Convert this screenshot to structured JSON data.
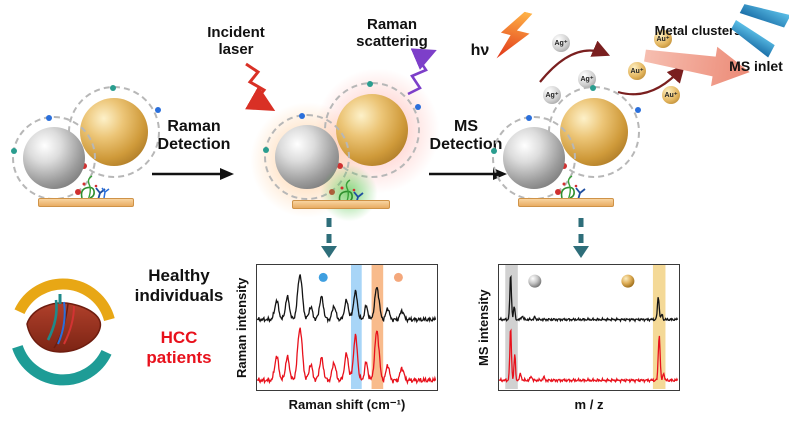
{
  "labels": {
    "incident_laser": [
      "Incident",
      "laser"
    ],
    "raman_scattering": [
      "Raman",
      "scattering"
    ],
    "raman_detection": [
      "Raman",
      "Detection"
    ],
    "ms_detection": [
      "MS",
      "Detection"
    ],
    "hv": "hν",
    "metal_clusters": "Metal clusters",
    "ms_inlet": "MS inlet",
    "ag_ion": "Ag⁺",
    "au_ion": "Au⁺",
    "healthy": [
      "Healthy",
      "individuals"
    ],
    "hcc": [
      "HCC",
      "patients"
    ]
  },
  "colors": {
    "hcc_red": "#e8111c",
    "healthy_black": "#111111",
    "logo_yellow": "#e8a715",
    "logo_teal": "#1e9c96",
    "laser_red": "#d93025",
    "scatter_purple": "#7d3fc9"
  },
  "chart_data": [
    {
      "type": "line",
      "name": "raman-spectra",
      "xlabel": "Raman shift (cm⁻¹)",
      "ylabel": "Raman intensity",
      "x_range": [
        0,
        100
      ],
      "grid": false,
      "bands": [
        {
          "x0": 52.5,
          "x1": 58.5,
          "color": "rgba(96,178,240,0.55)"
        },
        {
          "x0": 64.0,
          "x1": 70.5,
          "color": "rgba(243,146,70,0.62)"
        }
      ],
      "markers": [
        {
          "x": 37,
          "y": 10,
          "r": 4.5,
          "fill": "#3f9fe0"
        },
        {
          "x": 79,
          "y": 10,
          "r": 4.5,
          "fill": "#f4a87c"
        }
      ],
      "series": [
        {
          "name": "Healthy individuals",
          "color": "#141414",
          "baseline": 44,
          "amp": 36,
          "noise": 0.02,
          "peaks": [
            [
              11,
              0.42,
              1.1
            ],
            [
              17,
              0.5,
              1.1
            ],
            [
              24,
              1.0,
              1.3
            ],
            [
              30,
              0.28,
              1.0
            ],
            [
              36,
              0.5,
              1.1
            ],
            [
              43,
              0.3,
              1.0
            ],
            [
              50,
              0.42,
              1.1
            ],
            [
              55,
              0.62,
              1.1
            ],
            [
              61,
              0.3,
              0.9
            ],
            [
              67,
              0.72,
              1.2
            ],
            [
              73,
              0.26,
              0.9
            ],
            [
              81,
              0.2,
              1.0
            ]
          ]
        },
        {
          "name": "HCC patients",
          "color": "#e8111c",
          "baseline": 93,
          "amp": 42,
          "noise": 0.02,
          "peaks": [
            [
              11,
              0.46,
              1.1
            ],
            [
              17,
              0.44,
              1.1
            ],
            [
              24,
              1.0,
              1.3
            ],
            [
              30,
              0.3,
              1.0
            ],
            [
              36,
              0.42,
              1.1
            ],
            [
              43,
              0.34,
              1.0
            ],
            [
              50,
              0.5,
              1.1
            ],
            [
              55,
              0.85,
              1.1
            ],
            [
              61,
              0.34,
              0.9
            ],
            [
              67,
              0.95,
              1.2
            ],
            [
              73,
              0.3,
              0.9
            ],
            [
              81,
              0.24,
              1.0
            ]
          ]
        }
      ]
    },
    {
      "type": "line",
      "name": "ms-spectra",
      "xlabel": "m / z",
      "ylabel": "MS intensity",
      "x_range": [
        0,
        100
      ],
      "grid": false,
      "bands": [
        {
          "x0": 3.5,
          "x1": 10.5,
          "color": "rgba(140,140,140,0.4)"
        },
        {
          "x0": 86.0,
          "x1": 93.0,
          "color": "rgba(235,185,65,0.55)"
        }
      ],
      "markers": [
        {
          "x": 20,
          "y": 13,
          "r": 6.5,
          "fill": "silver"
        },
        {
          "x": 72,
          "y": 13,
          "r": 6.5,
          "fill": "gold"
        }
      ],
      "series": [
        {
          "name": "Healthy individuals",
          "color": "#141414",
          "baseline": 44,
          "amp": 36,
          "noise": 0.012,
          "peaks": [
            [
              6.5,
              1.0,
              0.45
            ],
            [
              8.5,
              0.3,
              0.4
            ],
            [
              13,
              0.08,
              0.5
            ],
            [
              20,
              0.05,
              0.5
            ],
            [
              89,
              0.5,
              0.5
            ],
            [
              91,
              0.12,
              0.4
            ]
          ]
        },
        {
          "name": "HCC patients",
          "color": "#e8111c",
          "baseline": 93,
          "amp": 42,
          "noise": 0.012,
          "peaks": [
            [
              6.5,
              1.0,
              0.45
            ],
            [
              8.8,
              0.5,
              0.4
            ],
            [
              12,
              0.12,
              0.5
            ],
            [
              18,
              0.08,
              0.5
            ],
            [
              25,
              0.06,
              0.5
            ],
            [
              89.5,
              0.88,
              0.5
            ],
            [
              92,
              0.15,
              0.4
            ]
          ]
        }
      ]
    }
  ]
}
